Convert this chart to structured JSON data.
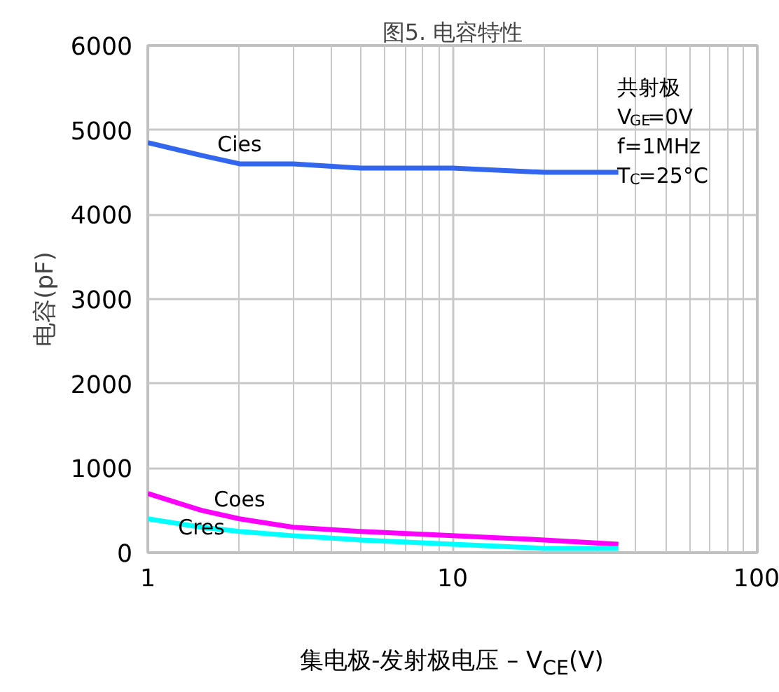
{
  "chart_data": {
    "type": "line",
    "title": "图5. 电容特性",
    "xlabel": "集电极-发射极电压 – V$_{CE}$(V)",
    "ylabel": "电容(pF)",
    "x": [
      1,
      1.5,
      2,
      3,
      5,
      10,
      20,
      35
    ],
    "series": [
      {
        "name": "Cies",
        "color": "#3366ee",
        "values": [
          4850,
          4700,
          4600,
          4600,
          4550,
          4550,
          4500,
          4500
        ]
      },
      {
        "name": "Coes",
        "color": "#ff00ff",
        "values": [
          700,
          500,
          400,
          300,
          250,
          200,
          150,
          100
        ]
      },
      {
        "name": "Cres",
        "color": "#00ffff",
        "values": [
          400,
          300,
          250,
          200,
          150,
          100,
          50,
          50
        ]
      }
    ],
    "annotations": [
      "共射极",
      "V$_{GE}$=0V",
      "f=1MHz",
      "T$_{C}$=25°C"
    ],
    "xlim": [
      1,
      100
    ],
    "ylim": [
      0,
      6000
    ],
    "xticks": [
      1,
      10,
      100
    ],
    "yticks": [
      0,
      1000,
      2000,
      3000,
      4000,
      5000,
      6000
    ],
    "log": "x",
    "grid": true,
    "marker": "none",
    "line_style": "solid"
  }
}
